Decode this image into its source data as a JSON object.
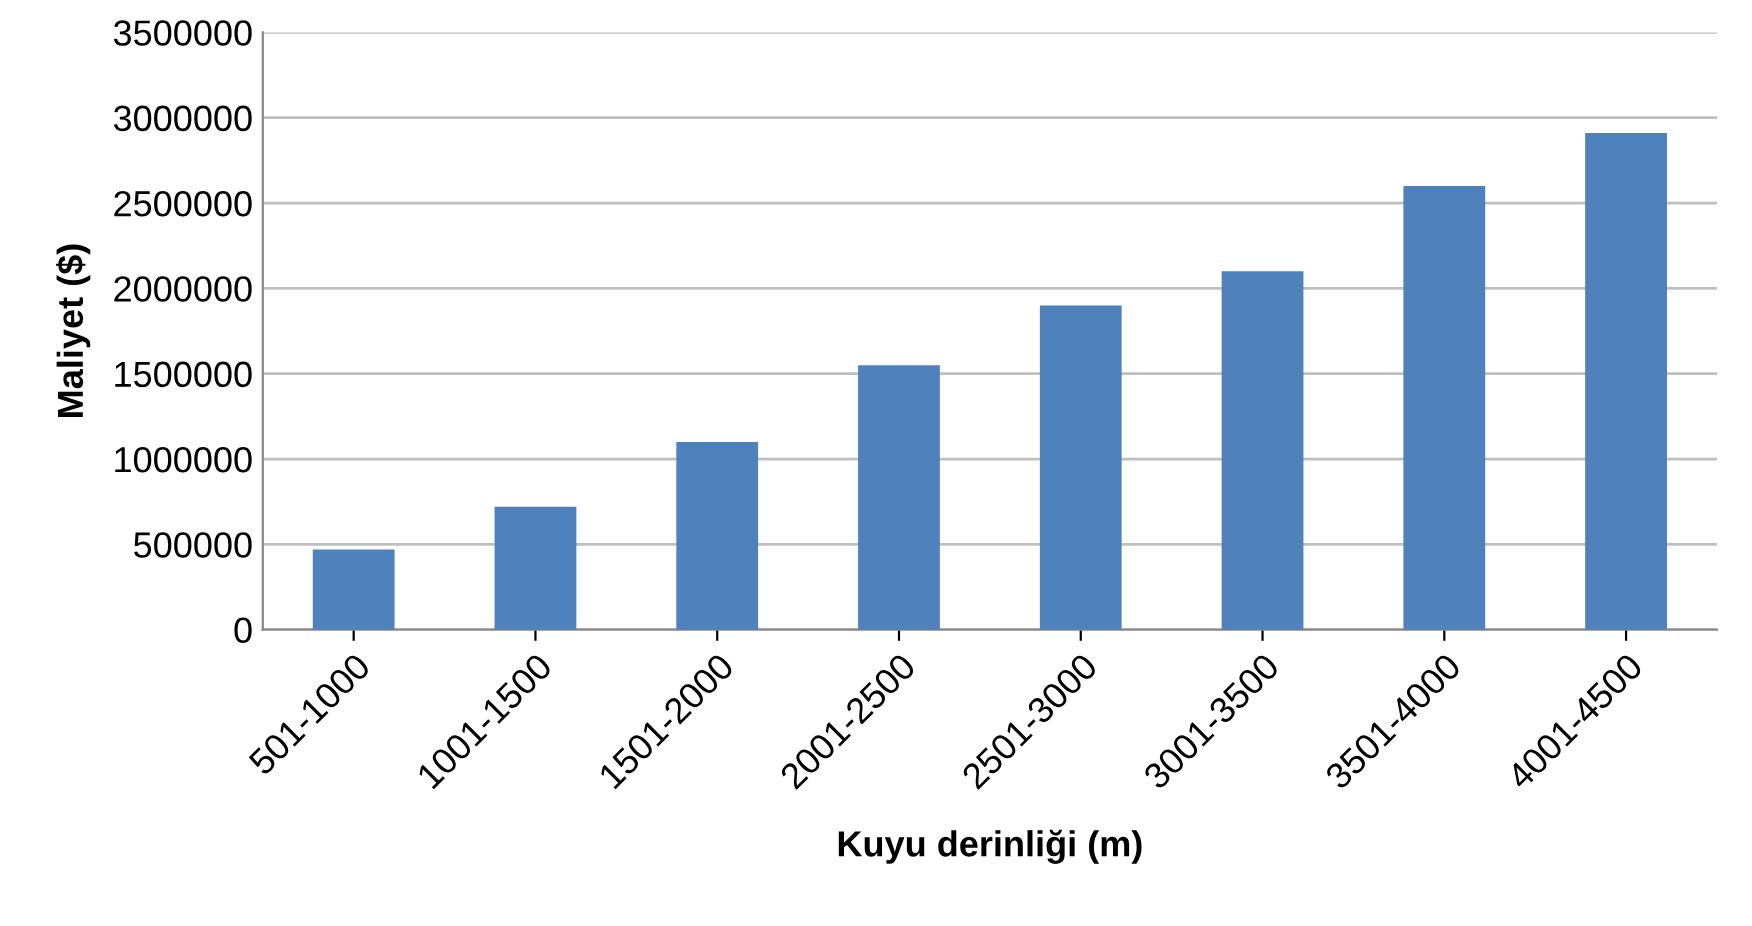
{
  "chart_data": {
    "type": "bar",
    "xlabel": "Kuyu derinliği (m)",
    "ylabel": "Maliyet ($)",
    "categories": [
      "501-1000",
      "1001-1500",
      "1501-2000",
      "2001-2500",
      "2501-3000",
      "3001-3500",
      "3501-4000",
      "4001-4500"
    ],
    "values": [
      470000,
      720000,
      1100000,
      1550000,
      1900000,
      2100000,
      2600000,
      2910000
    ],
    "color": "#4f81bd",
    "ylim": [
      0,
      3500000
    ],
    "yticks": [
      0,
      500000,
      1000000,
      1500000,
      2000000,
      2500000,
      3000000,
      3500000
    ],
    "grid": "y",
    "legend": false
  }
}
